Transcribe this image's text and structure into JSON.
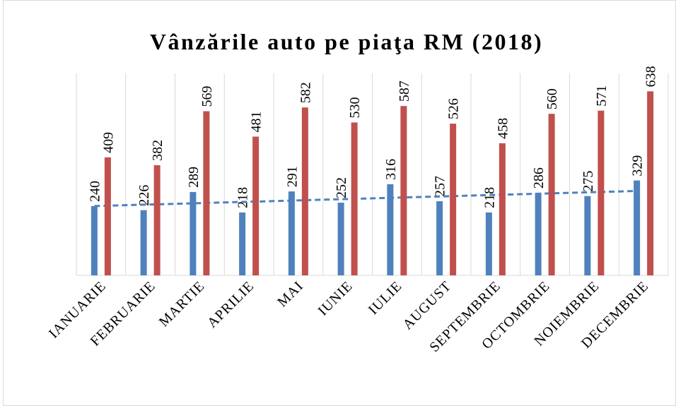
{
  "chart_data": {
    "type": "bar",
    "title": "Vânzările auto pe piaţa RM (2018)",
    "categories": [
      "IANUARIE",
      "FEBRUARIE",
      "MARTIE",
      "APRILIE",
      "MAI",
      "IUNIE",
      "IULIE",
      "AUGUST",
      "SEPTEMBRIE",
      "OCTOMBRIE",
      "NOIEMBRIE",
      "DECEMBRIE"
    ],
    "series": [
      {
        "color": "#4f81bd",
        "trendline": "linear",
        "values": [
          240,
          226,
          289,
          218,
          291,
          252,
          316,
          257,
          218,
          286,
          275,
          329
        ]
      },
      {
        "color": "#c0504d",
        "values": [
          409,
          382,
          569,
          481,
          582,
          530,
          587,
          526,
          458,
          560,
          571,
          638
        ]
      }
    ],
    "ylim": [
      0,
      700
    ],
    "grid": true
  }
}
